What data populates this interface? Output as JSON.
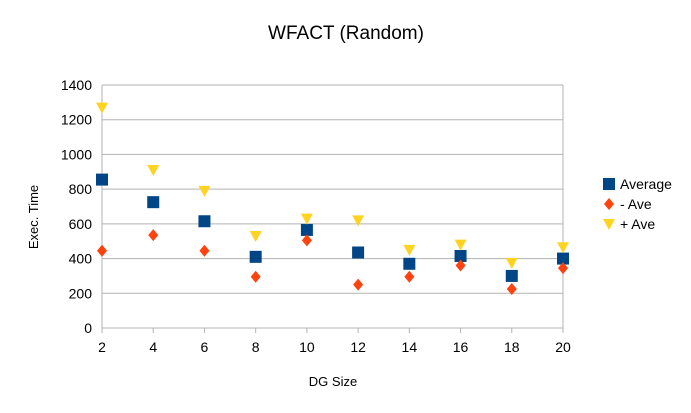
{
  "chart_data": {
    "type": "scatter",
    "title": "WFACT (Random)",
    "xlabel": "DG Size",
    "ylabel": "Exec. Time",
    "x": [
      2,
      4,
      6,
      8,
      10,
      12,
      14,
      16,
      18,
      20
    ],
    "xlim": [
      2,
      20
    ],
    "ylim": [
      0,
      1400
    ],
    "yticks": [
      0,
      200,
      400,
      600,
      800,
      1000,
      1200,
      1400
    ],
    "grid": true,
    "legend_position": "right",
    "series": [
      {
        "name": "Average",
        "marker": "square",
        "color": "#004586",
        "values": [
          855,
          725,
          615,
          410,
          565,
          435,
          370,
          415,
          300,
          400
        ]
      },
      {
        "name": "- Ave",
        "marker": "diamond",
        "color": "#ff420e",
        "values": [
          445,
          535,
          445,
          295,
          505,
          250,
          295,
          360,
          225,
          345
        ]
      },
      {
        "name": "+ Ave",
        "marker": "triangle-down",
        "color": "#ffd320",
        "values": [
          1270,
          910,
          790,
          530,
          630,
          620,
          450,
          480,
          375,
          465
        ]
      }
    ]
  }
}
